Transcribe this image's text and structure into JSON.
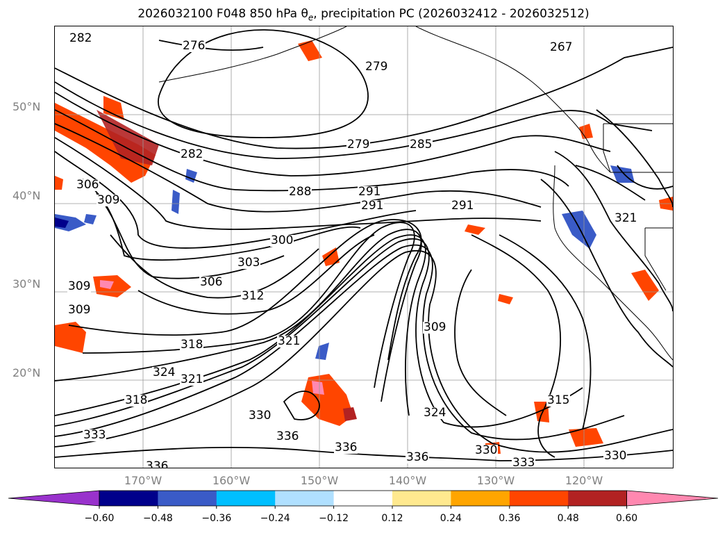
{
  "title": {
    "prefix": "2026032100 F048 850 hPa θ",
    "subscript": "e",
    "suffix": ", precipitation PC (2026032412 - 2026032512)"
  },
  "map": {
    "lat_ticks": [
      "50°N",
      "40°N",
      "30°N",
      "20°N"
    ],
    "lon_ticks": [
      "170°W",
      "160°W",
      "150°W",
      "140°W",
      "130°W",
      "120°W"
    ],
    "contour_labels": [
      "282",
      "276",
      "279",
      "267",
      "279",
      "285",
      "282",
      "291",
      "288",
      "291",
      "291",
      "306",
      "309",
      "300",
      "303",
      "321",
      "306",
      "312",
      "309",
      "309",
      "309",
      "318",
      "321",
      "324",
      "321",
      "318",
      "330",
      "333",
      "336",
      "336",
      "336",
      "324",
      "315",
      "330",
      "333",
      "330",
      "336"
    ]
  },
  "colorbar": {
    "labels": [
      "−0.60",
      "−0.48",
      "−0.36",
      "−0.24",
      "−0.12",
      "0.12",
      "0.24",
      "0.36",
      "0.48",
      "0.60"
    ],
    "colors": {
      "under": "#9932CC",
      "bins": [
        "#9932CC",
        "#00008B",
        "#3a5bc7",
        "#00bfff",
        "#b0e0ff",
        "#ffffff",
        "#ffe98f",
        "#ffa500",
        "#ff4500",
        "#b22222",
        "#ff88b0"
      ],
      "over": "#ff88b0"
    }
  },
  "colors": {
    "contour": "#000000",
    "grid": "#999999",
    "tick_text": "#808080"
  }
}
